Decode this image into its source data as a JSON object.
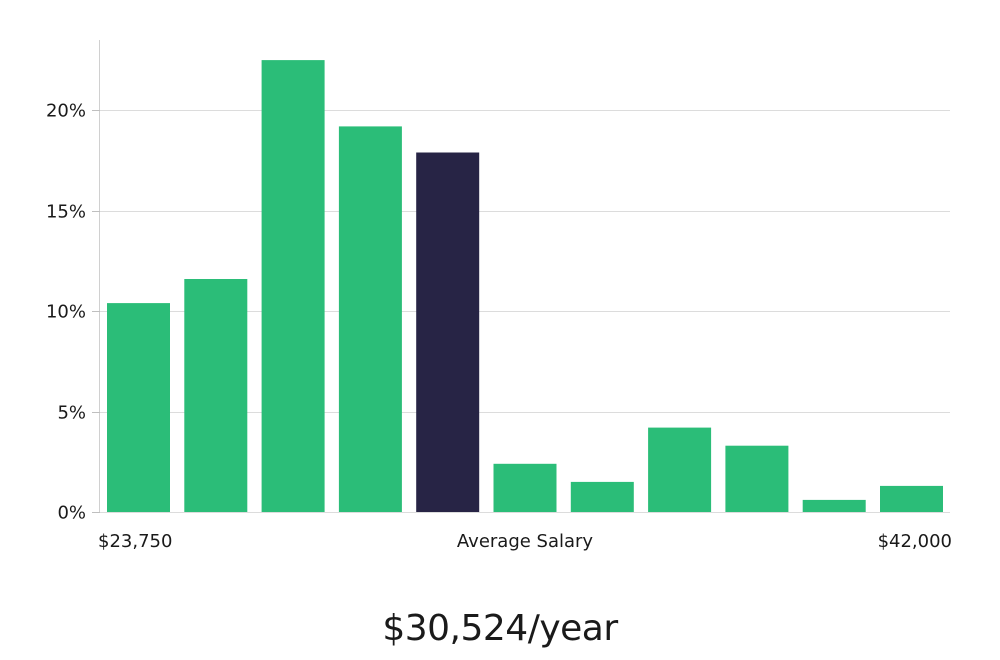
{
  "chart_data": {
    "type": "bar",
    "title": "",
    "xlabel": "Average Salary",
    "ylabel": "",
    "x_min_label": "$23,750",
    "x_max_label": "$42,000",
    "ylim": [
      0,
      23.5
    ],
    "yticks": [
      0,
      5,
      10,
      15,
      20
    ],
    "ytick_labels": [
      "0%",
      "5%",
      "10%",
      "15%",
      "20%"
    ],
    "values": [
      10.4,
      11.6,
      22.5,
      19.2,
      17.9,
      2.4,
      1.5,
      4.2,
      3.3,
      0.6,
      1.3
    ],
    "highlight_index": 4,
    "colors": {
      "bar": "#2bbd78",
      "highlight": "#272445",
      "grid": "#dcdcdc",
      "axis": "#cccccc"
    }
  },
  "headline": "$30,524/year"
}
